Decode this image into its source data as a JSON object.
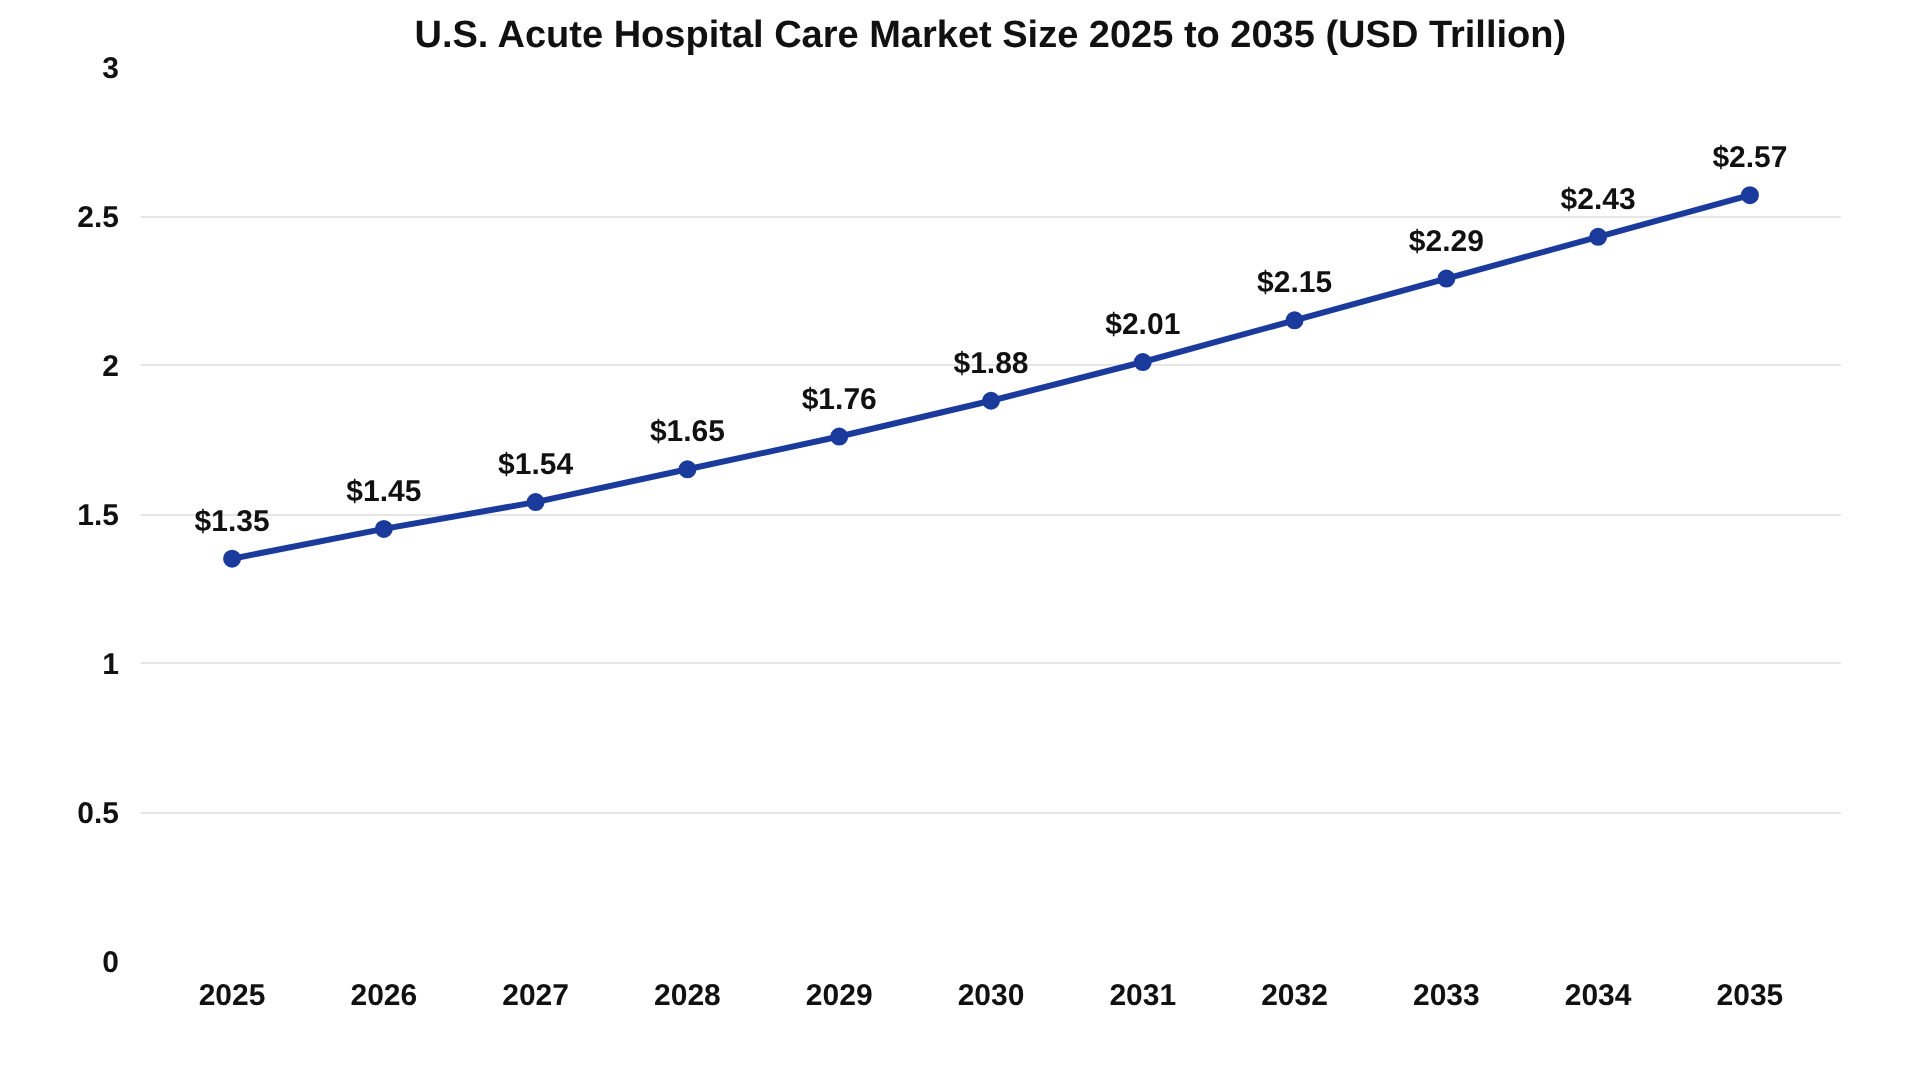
{
  "chart_data": {
    "type": "line",
    "title": "U.S. Acute Hospital Care Market Size 2025 to 2035 (USD Trillion)",
    "categories": [
      "2025",
      "2026",
      "2027",
      "2028",
      "2029",
      "2030",
      "2031",
      "2032",
      "2033",
      "2034",
      "2035"
    ],
    "series": [
      {
        "color": "#1a3a9c",
        "values": [
          1.35,
          1.45,
          1.54,
          1.65,
          1.76,
          1.88,
          2.01,
          2.15,
          2.29,
          2.43,
          2.57
        ],
        "value_labels": [
          "$1.35",
          "$1.45",
          "$1.54",
          "$1.65",
          "$1.76",
          "$1.88",
          "$2.01",
          "$2.15",
          "$2.29",
          "$2.43",
          "$2.57"
        ]
      }
    ],
    "ylim": [
      0,
      3
    ],
    "yticks": [
      0,
      0.5,
      1,
      1.5,
      2,
      2.5,
      3
    ],
    "grid": "y",
    "marker": "circle",
    "line_style": "solid"
  }
}
